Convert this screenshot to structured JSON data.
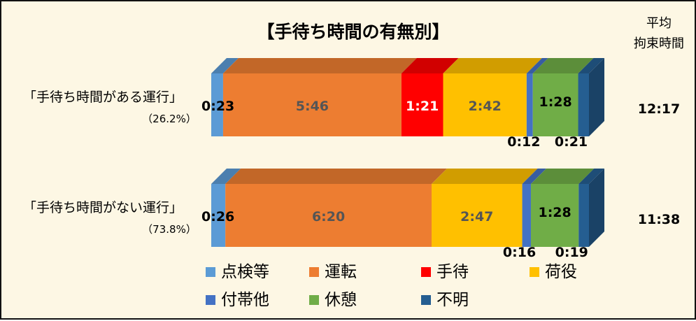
{
  "chart_data": {
    "type": "bar",
    "stacked": true,
    "orientation": "horizontal",
    "style": "3d",
    "title": "【手待ち時間の有無別】",
    "avg_header_line1": "平均",
    "avg_header_line2": "拘束時間",
    "categories": [
      {
        "label": "「手待ち時間がある運行」",
        "share": "（26.2%）",
        "avg": "12:17"
      },
      {
        "label": "「手待ち時間がない運行」",
        "share": "（73.8%）",
        "avg": "11:38"
      }
    ],
    "series": [
      {
        "name": "点検等",
        "color": "#5b9bd5",
        "values": [
          "0:23",
          "0:26"
        ],
        "minutes": [
          23,
          26
        ]
      },
      {
        "name": "運転",
        "color": "#ed7d31",
        "values": [
          "5:46",
          "6:20"
        ],
        "minutes": [
          346,
          380
        ]
      },
      {
        "name": "手待",
        "color": "#ff0000",
        "values": [
          "1:21",
          ""
        ],
        "minutes": [
          81,
          0
        ]
      },
      {
        "name": "荷役",
        "color": "#ffc000",
        "values": [
          "2:42",
          "2:47"
        ],
        "minutes": [
          162,
          167
        ]
      },
      {
        "name": "付帯他",
        "color": "#4472c4",
        "values": [
          "0:12",
          "0:16"
        ],
        "minutes": [
          12,
          16
        ]
      },
      {
        "name": "休憩",
        "color": "#70ad47",
        "values": [
          "1:28",
          "1:28"
        ],
        "minutes": [
          88,
          88
        ]
      },
      {
        "name": "不明",
        "color": "#255e91",
        "values": [
          "0:21",
          "0:19"
        ],
        "minutes": [
          21,
          19
        ]
      }
    ],
    "legend": {
      "position": "bottom"
    },
    "grid": false
  }
}
